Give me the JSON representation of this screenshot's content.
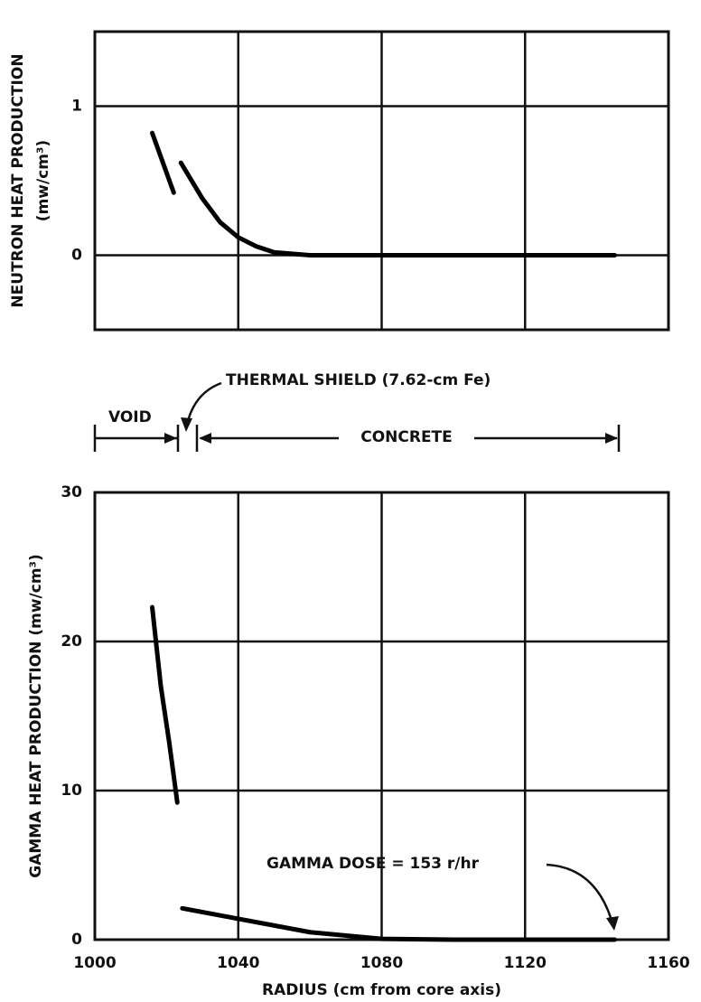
{
  "chart_data": [
    {
      "type": "line",
      "ylabel": "NEUTRON HEAT PRODUCTION",
      "ylabel_unit": "(mw/cm³)",
      "xlim": [
        1000,
        1160
      ],
      "xticks": [
        1000,
        1040,
        1080,
        1120,
        1160
      ],
      "show_xtick_labels": false,
      "ylim": [
        -0.5,
        1.5
      ],
      "yticks": [
        0,
        1
      ],
      "grid": true,
      "series": [
        {
          "color": "#000000",
          "x": [
            1016,
            1019,
            1022,
            1023,
            1024,
            1030,
            1035,
            1040,
            1045,
            1050,
            1060,
            1080,
            1100,
            1120,
            1145
          ],
          "values": [
            0.82,
            0.62,
            0.42,
            null,
            0.62,
            0.38,
            0.22,
            0.12,
            0.06,
            0.02,
            0,
            0,
            0,
            0,
            0
          ]
        }
      ]
    },
    {
      "type": "line",
      "ylabel": "GAMMA HEAT PRODUCTION (mw/cm³)",
      "xlabel": "RADIUS (cm from core axis)",
      "xlim": [
        1000,
        1160
      ],
      "xticks": [
        1000,
        1040,
        1080,
        1120,
        1160
      ],
      "show_xtick_labels": true,
      "ylim": [
        0,
        30
      ],
      "yticks": [
        0,
        10,
        20,
        30
      ],
      "grid": true,
      "annotations": [
        "THERMAL SHIELD (7.62-cm Fe)",
        "VOID",
        "CONCRETE",
        "GAMMA DOSE = 153 r/hr"
      ],
      "series": [
        {
          "color": "#000000",
          "x": [
            1016,
            1018.4,
            1020.7,
            1023,
            1023.5,
            1024.4,
            1040,
            1060,
            1080,
            1100,
            1120,
            1145
          ],
          "values": [
            22.3,
            17,
            13.3,
            9.2,
            null,
            2.1,
            1.4,
            0.5,
            0.05,
            0,
            0,
            0
          ]
        }
      ]
    }
  ]
}
